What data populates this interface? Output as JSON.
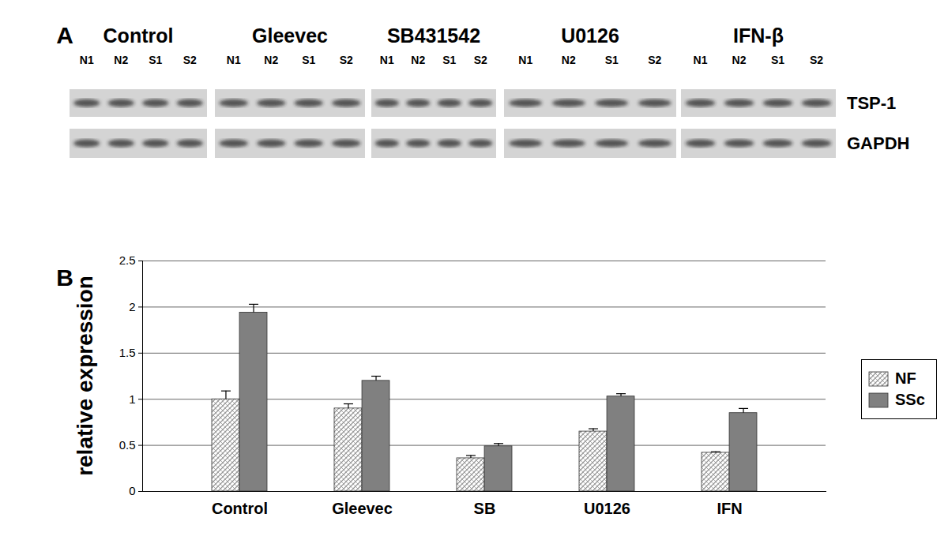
{
  "panel_a": {
    "label": "A",
    "groups": [
      "Control",
      "Gleevec",
      "SB431542",
      "U0126",
      "IFN-β"
    ],
    "lanes": [
      "N1",
      "N2",
      "S1",
      "S2"
    ],
    "rows": [
      "TSP-1",
      "GAPDH"
    ]
  },
  "chart_data": {
    "type": "bar",
    "title": "B",
    "y_label": "relative expression",
    "categories": [
      "Control",
      "Gleevec",
      "SB",
      "U0126",
      "IFN"
    ],
    "series": [
      {
        "name": "NF",
        "color": "#9a9a9a",
        "values": [
          1.0,
          0.9,
          0.36,
          0.65,
          0.42
        ],
        "errors": [
          0.09,
          0.05,
          0.03,
          0.03,
          0.01
        ]
      },
      {
        "name": "SSc",
        "color": "#808080",
        "values": [
          1.94,
          1.2,
          0.49,
          1.03,
          0.85
        ],
        "errors": [
          0.09,
          0.05,
          0.03,
          0.03,
          0.05
        ]
      }
    ],
    "ylim": [
      0,
      2.5
    ],
    "yticks": [
      0,
      0.5,
      1,
      1.5,
      2,
      2.5
    ],
    "grid": true,
    "legend": "right"
  }
}
